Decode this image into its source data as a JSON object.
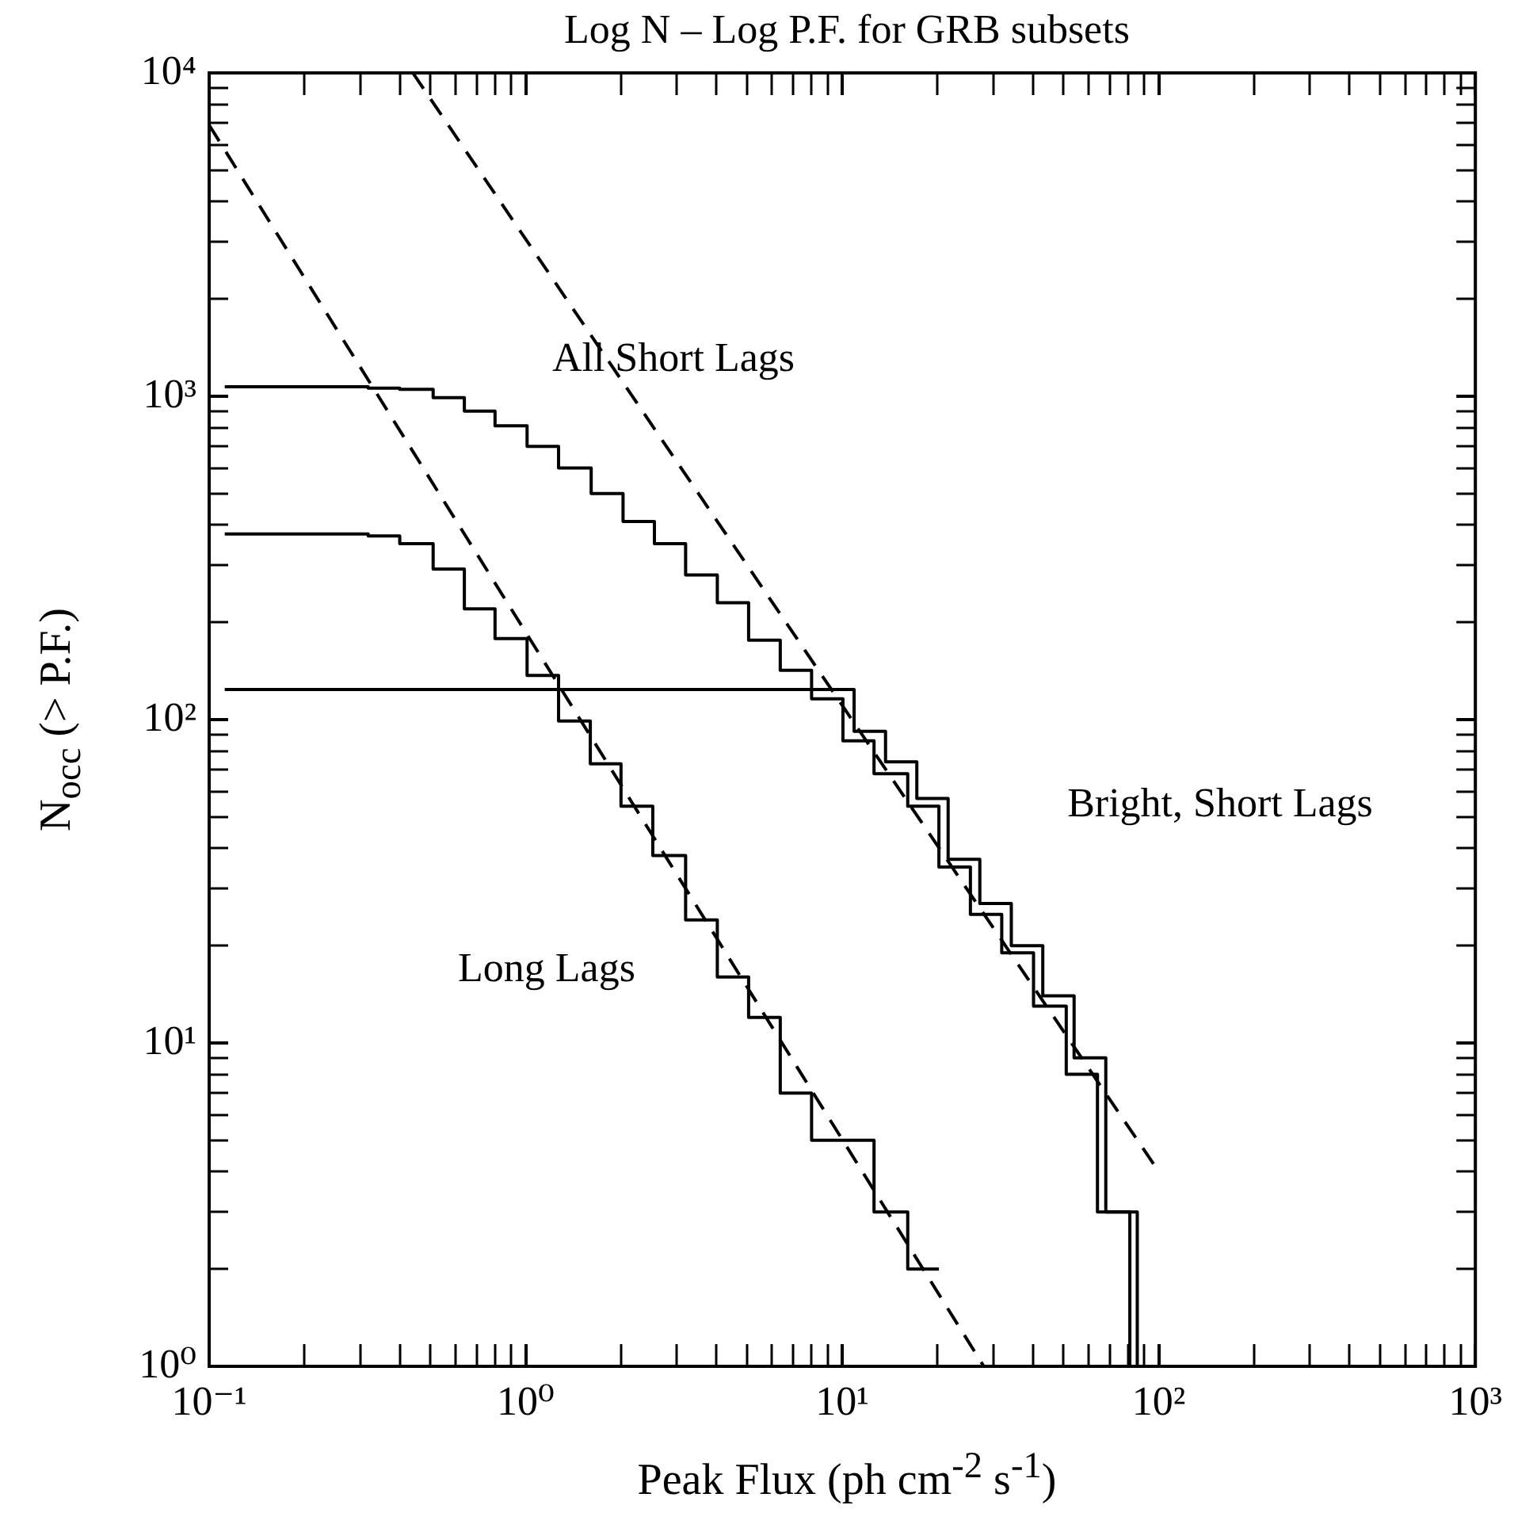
{
  "chart_data": {
    "type": "step",
    "title": "Log N – Log P.F. for GRB subsets",
    "xlabel": "Peak Flux (ph cm$^{-2}$ s$^{-1}$)",
    "ylabel": "N$_{occ}$ (> P.F.)",
    "log": "xy",
    "grid": false,
    "legend": false,
    "marker": "none",
    "xlim": [
      0.1,
      1000
    ],
    "ylim": [
      1,
      10000
    ],
    "xticks": [
      {
        "value": 0.1,
        "label": "10⁻¹"
      },
      {
        "value": 0.2,
        "label": null
      },
      {
        "value": 0.3,
        "label": null
      },
      {
        "value": 0.4,
        "label": null
      },
      {
        "value": 0.5,
        "label": null
      },
      {
        "value": 0.6,
        "label": null
      },
      {
        "value": 0.7,
        "label": null
      },
      {
        "value": 0.8,
        "label": null
      },
      {
        "value": 0.9,
        "label": null
      },
      {
        "value": 1,
        "label": "10⁰"
      },
      {
        "value": 2,
        "label": null
      },
      {
        "value": 3,
        "label": null
      },
      {
        "value": 4,
        "label": null
      },
      {
        "value": 5,
        "label": null
      },
      {
        "value": 6,
        "label": null
      },
      {
        "value": 7,
        "label": null
      },
      {
        "value": 8,
        "label": null
      },
      {
        "value": 9,
        "label": null
      },
      {
        "value": 10,
        "label": "10¹"
      },
      {
        "value": 20,
        "label": null
      },
      {
        "value": 30,
        "label": null
      },
      {
        "value": 40,
        "label": null
      },
      {
        "value": 50,
        "label": null
      },
      {
        "value": 60,
        "label": null
      },
      {
        "value": 70,
        "label": null
      },
      {
        "value": 80,
        "label": null
      },
      {
        "value": 90,
        "label": null
      },
      {
        "value": 100,
        "label": "10²"
      },
      {
        "value": 200,
        "label": null
      },
      {
        "value": 300,
        "label": null
      },
      {
        "value": 400,
        "label": null
      },
      {
        "value": 500,
        "label": null
      },
      {
        "value": 600,
        "label": null
      },
      {
        "value": 700,
        "label": null
      },
      {
        "value": 800,
        "label": null
      },
      {
        "value": 900,
        "label": null
      },
      {
        "value": 1000,
        "label": "10³"
      }
    ],
    "yticks": [
      {
        "value": 1,
        "label": "10⁰"
      },
      {
        "value": 2,
        "label": null
      },
      {
        "value": 3,
        "label": null
      },
      {
        "value": 4,
        "label": null
      },
      {
        "value": 5,
        "label": null
      },
      {
        "value": 6,
        "label": null
      },
      {
        "value": 7,
        "label": null
      },
      {
        "value": 8,
        "label": null
      },
      {
        "value": 9,
        "label": null
      },
      {
        "value": 10,
        "label": "10¹"
      },
      {
        "value": 20,
        "label": null
      },
      {
        "value": 30,
        "label": null
      },
      {
        "value": 40,
        "label": null
      },
      {
        "value": 50,
        "label": null
      },
      {
        "value": 60,
        "label": null
      },
      {
        "value": 70,
        "label": null
      },
      {
        "value": 80,
        "label": null
      },
      {
        "value": 90,
        "label": null
      },
      {
        "value": 100,
        "label": "10²"
      },
      {
        "value": 200,
        "label": null
      },
      {
        "value": 300,
        "label": null
      },
      {
        "value": 400,
        "label": null
      },
      {
        "value": 500,
        "label": null
      },
      {
        "value": 600,
        "label": null
      },
      {
        "value": 700,
        "label": null
      },
      {
        "value": 800,
        "label": null
      },
      {
        "value": 900,
        "label": null
      },
      {
        "value": 1000,
        "label": "10³"
      },
      {
        "value": 2000,
        "label": null
      },
      {
        "value": 3000,
        "label": null
      },
      {
        "value": 4000,
        "label": null
      },
      {
        "value": 5000,
        "label": null
      },
      {
        "value": 6000,
        "label": null
      },
      {
        "value": 7000,
        "label": null
      },
      {
        "value": 8000,
        "label": null
      },
      {
        "value": 9000,
        "label": null
      },
      {
        "value": 10000,
        "label": "10⁴"
      }
    ],
    "series": [
      {
        "color": "#000000",
        "x": [
          0.112,
          0.318,
          0.4,
          0.51,
          0.64,
          0.8,
          1.01,
          1.27,
          1.61,
          2.03,
          2.55,
          3.2,
          4.03,
          5.06,
          6.37,
          8.0,
          10.05,
          12.6,
          16.1,
          20.2,
          25.4,
          31.9,
          40.2,
          51,
          64,
          81,
          101
        ],
        "values": [
          1070,
          1060,
          1050,
          990,
          900,
          810,
          700,
          600,
          500,
          410,
          350,
          280,
          230,
          176,
          142,
          116,
          86,
          68,
          54,
          35,
          25,
          19,
          13,
          8,
          3,
          1,
          1
        ]
      },
      {
        "color": "#000000",
        "x": [
          0.112,
          10.9,
          13.7,
          17.2,
          21.6,
          27.2,
          34.2,
          43.0,
          54,
          68,
          85.5,
          107
        ],
        "values": [
          124,
          92,
          74,
          57,
          37,
          27,
          20,
          14,
          9,
          3,
          1,
          1
        ]
      },
      {
        "color": "#000000",
        "x": [
          0.112,
          0.318,
          0.4,
          0.51,
          0.64,
          0.8,
          1.01,
          1.27,
          1.6,
          2.0,
          2.52,
          3.2,
          4.03,
          5.06,
          6.37,
          8.0,
          12.6,
          16.1,
          20.2
        ],
        "values": [
          375,
          370,
          350,
          292,
          220,
          178,
          137,
          99,
          73,
          54,
          38,
          24,
          16,
          12,
          7,
          5,
          3,
          2,
          2
        ]
      },
      {
        "type": "line",
        "line_style": "dashed",
        "color": "#000000",
        "x": [
          0.1,
          28
        ],
        "values": [
          6900,
          1
        ]
      },
      {
        "type": "line",
        "line_style": "dashed",
        "color": "#000000",
        "x": [
          0.44,
          100
        ],
        "values": [
          10000,
          4
        ]
      }
    ],
    "annotations": [
      "All Short Lags",
      "Bright, Short Lags",
      "Long Lags"
    ]
  }
}
